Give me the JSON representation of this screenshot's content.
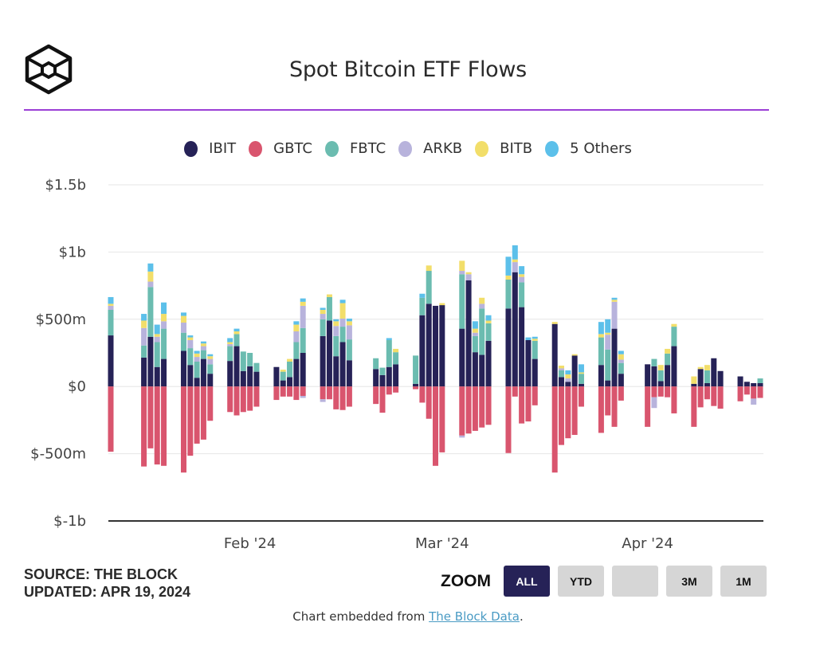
{
  "header": {
    "title": "Spot Bitcoin ETF Flows",
    "logo": "the-block-cube-logo"
  },
  "legend": [
    {
      "name": "IBIT",
      "color": "#262257"
    },
    {
      "name": "GBTC",
      "color": "#d9556e"
    },
    {
      "name": "FBTC",
      "color": "#6bbcb0"
    },
    {
      "name": "ARKB",
      "color": "#b8b3dc"
    },
    {
      "name": "BITB",
      "color": "#f2de6a"
    },
    {
      "name": "5 Others",
      "color": "#5cc0ea"
    }
  ],
  "footer": {
    "source": "SOURCE: THE BLOCK",
    "updated": "UPDATED: APR 19, 2024",
    "zoom_label": "ZOOM",
    "zoom_buttons": [
      {
        "label": "ALL",
        "active": true
      },
      {
        "label": "YTD",
        "active": false
      },
      {
        "label": "",
        "active": false
      },
      {
        "label": "3M",
        "active": false
      },
      {
        "label": "1M",
        "active": false
      }
    ],
    "embed_prefix": "Chart embedded from ",
    "embed_link": "The Block Data",
    "embed_suffix": "."
  },
  "chart_data": {
    "type": "bar",
    "stacked": true,
    "title": "Spot Bitcoin ETF Flows",
    "xlabel": "",
    "ylabel": "",
    "unit": "USD millions",
    "ylim": [
      -1000,
      1500
    ],
    "yticks": [
      {
        "value": 1500,
        "label": "$1.5b"
      },
      {
        "value": 1000,
        "label": "$1b"
      },
      {
        "value": 500,
        "label": "$500m"
      },
      {
        "value": 0,
        "label": "$0"
      },
      {
        "value": -500,
        "label": "$-500m"
      },
      {
        "value": -1000,
        "label": "$-1b"
      }
    ],
    "xticks": [
      {
        "date": "2024-02-01",
        "label": "Feb '24"
      },
      {
        "date": "2024-03-01",
        "label": "Mar '24"
      },
      {
        "date": "2024-04-01",
        "label": "Apr '24"
      }
    ],
    "xrange": [
      "2024-01-11",
      "2024-04-18"
    ],
    "grid": true,
    "legend_position": "top",
    "series_order": [
      "IBIT",
      "GBTC",
      "FBTC",
      "ARKB",
      "BITB",
      "5 Others"
    ],
    "dates": [
      "2024-01-11",
      "2024-01-16",
      "2024-01-17",
      "2024-01-18",
      "2024-01-19",
      "2024-01-22",
      "2024-01-23",
      "2024-01-24",
      "2024-01-25",
      "2024-01-26",
      "2024-01-29",
      "2024-01-30",
      "2024-01-31",
      "2024-02-01",
      "2024-02-02",
      "2024-02-05",
      "2024-02-06",
      "2024-02-07",
      "2024-02-08",
      "2024-02-09",
      "2024-02-12",
      "2024-02-13",
      "2024-02-14",
      "2024-02-15",
      "2024-02-16",
      "2024-02-20",
      "2024-02-21",
      "2024-02-22",
      "2024-02-23",
      "2024-02-26",
      "2024-02-27",
      "2024-02-28",
      "2024-02-29",
      "2024-03-01",
      "2024-03-04",
      "2024-03-05",
      "2024-03-06",
      "2024-03-07",
      "2024-03-08",
      "2024-03-11",
      "2024-03-12",
      "2024-03-13",
      "2024-03-14",
      "2024-03-15",
      "2024-03-18",
      "2024-03-19",
      "2024-03-20",
      "2024-03-21",
      "2024-03-22",
      "2024-03-25",
      "2024-03-26",
      "2024-03-27",
      "2024-03-28",
      "2024-04-01",
      "2024-04-02",
      "2024-04-03",
      "2024-04-04",
      "2024-04-05",
      "2024-04-08",
      "2024-04-09",
      "2024-04-10",
      "2024-04-11",
      "2024-04-12",
      "2024-04-15",
      "2024-04-16",
      "2024-04-17",
      "2024-04-18"
    ],
    "series": [
      {
        "name": "IBIT",
        "values": [
          380,
          215,
          370,
          145,
          205,
          265,
          160,
          65,
          205,
          95,
          190,
          300,
          115,
          150,
          110,
          145,
          45,
          70,
          205,
          250,
          375,
          490,
          225,
          330,
          195,
          130,
          85,
          145,
          165,
          20,
          530,
          615,
          600,
          605,
          430,
          790,
          255,
          235,
          340,
          580,
          850,
          590,
          345,
          205,
          465,
          70,
          35,
          230,
          20,
          160,
          45,
          430,
          95,
          165,
          150,
          40,
          160,
          300,
          20,
          130,
          25,
          210,
          115,
          75,
          35,
          25,
          25
        ]
      },
      {
        "name": "GBTC",
        "values": [
          -485,
          -595,
          -460,
          -580,
          -590,
          -640,
          -515,
          -425,
          -395,
          -255,
          -190,
          -215,
          -190,
          -180,
          -150,
          -100,
          -75,
          -75,
          -100,
          -70,
          -95,
          -95,
          -170,
          -175,
          -150,
          -130,
          -195,
          -60,
          -45,
          -20,
          -120,
          -240,
          -590,
          -490,
          -365,
          -350,
          -330,
          -305,
          -285,
          -495,
          -75,
          -275,
          -260,
          -140,
          -640,
          -435,
          -385,
          -360,
          -150,
          -345,
          -215,
          -300,
          -105,
          -300,
          -80,
          -75,
          -80,
          -200,
          -300,
          -155,
          -95,
          -145,
          -165,
          -110,
          -60,
          -90,
          -85
        ]
      },
      {
        "name": "FBTC",
        "values": [
          190,
          90,
          370,
          185,
          225,
          135,
          125,
          120,
          65,
          70,
          110,
          90,
          145,
          100,
          65,
          0,
          65,
          115,
          125,
          185,
          125,
          175,
          150,
          115,
          155,
          80,
          55,
          200,
          90,
          210,
          130,
          245,
          0,
          0,
          405,
          0,
          120,
          345,
          130,
          215,
          0,
          185,
          0,
          135,
          0,
          50,
          0,
          0,
          75,
          205,
          230,
          0,
          80,
          0,
          55,
          80,
          85,
          145,
          0,
          0,
          95,
          0,
          0,
          0,
          0,
          0,
          35
        ]
      },
      {
        "name": "ARKB",
        "values": [
          30,
          130,
          40,
          40,
          55,
          75,
          60,
          35,
          30,
          40,
          15,
          0,
          0,
          0,
          0,
          0,
          0,
          0,
          80,
          165,
          40,
          0,
          75,
          60,
          105,
          0,
          0,
          0,
          0,
          0,
          0,
          0,
          0,
          0,
          25,
          45,
          25,
          35,
          0,
          0,
          75,
          40,
          0,
          0,
          0,
          15,
          25,
          0,
          0,
          0,
          110,
          200,
          25,
          0,
          0,
          0,
          0,
          0,
          0,
          0,
          0,
          0,
          0,
          0,
          0,
          0,
          0
        ]
      },
      {
        "name": "BITB",
        "values": [
          15,
          55,
          75,
          20,
          55,
          50,
          20,
          25,
          20,
          20,
          15,
          20,
          0,
          0,
          0,
          0,
          15,
          20,
          50,
          30,
          30,
          20,
          35,
          115,
          30,
          0,
          0,
          0,
          25,
          0,
          0,
          40,
          0,
          15,
          75,
          15,
          30,
          45,
          20,
          30,
          20,
          20,
          0,
          15,
          15,
          20,
          30,
          10,
          10,
          25,
          15,
          15,
          40,
          0,
          0,
          40,
          35,
          20,
          55,
          15,
          40,
          0,
          0,
          0,
          0,
          0,
          0
        ]
      },
      {
        "name": "5 Others",
        "values": [
          50,
          50,
          60,
          70,
          85,
          25,
          15,
          20,
          15,
          15,
          30,
          20,
          0,
          0,
          0,
          0,
          0,
          0,
          25,
          25,
          15,
          0,
          15,
          25,
          20,
          0,
          0,
          15,
          0,
          0,
          30,
          0,
          0,
          0,
          0,
          0,
          55,
          0,
          40,
          140,
          105,
          60,
          20,
          15,
          0,
          0,
          30,
          0,
          60,
          90,
          100,
          15,
          25,
          0,
          0,
          0,
          0,
          0,
          0,
          0,
          0,
          0,
          0,
          0,
          0,
          0,
          0
        ]
      },
      {
        "name": "ARKB (outflow)",
        "note": "small negative ARKB/other slices below GBTC",
        "values": [
          0,
          0,
          0,
          0,
          0,
          0,
          0,
          0,
          0,
          0,
          0,
          0,
          0,
          0,
          0,
          0,
          0,
          0,
          0,
          -15,
          -20,
          0,
          0,
          0,
          0,
          0,
          0,
          0,
          0,
          0,
          0,
          0,
          0,
          0,
          -15,
          0,
          0,
          0,
          0,
          0,
          0,
          0,
          0,
          0,
          0,
          0,
          0,
          0,
          0,
          0,
          0,
          0,
          0,
          0,
          -80,
          0,
          0,
          0,
          0,
          0,
          0,
          0,
          0,
          0,
          0,
          -45,
          0
        ]
      }
    ]
  }
}
